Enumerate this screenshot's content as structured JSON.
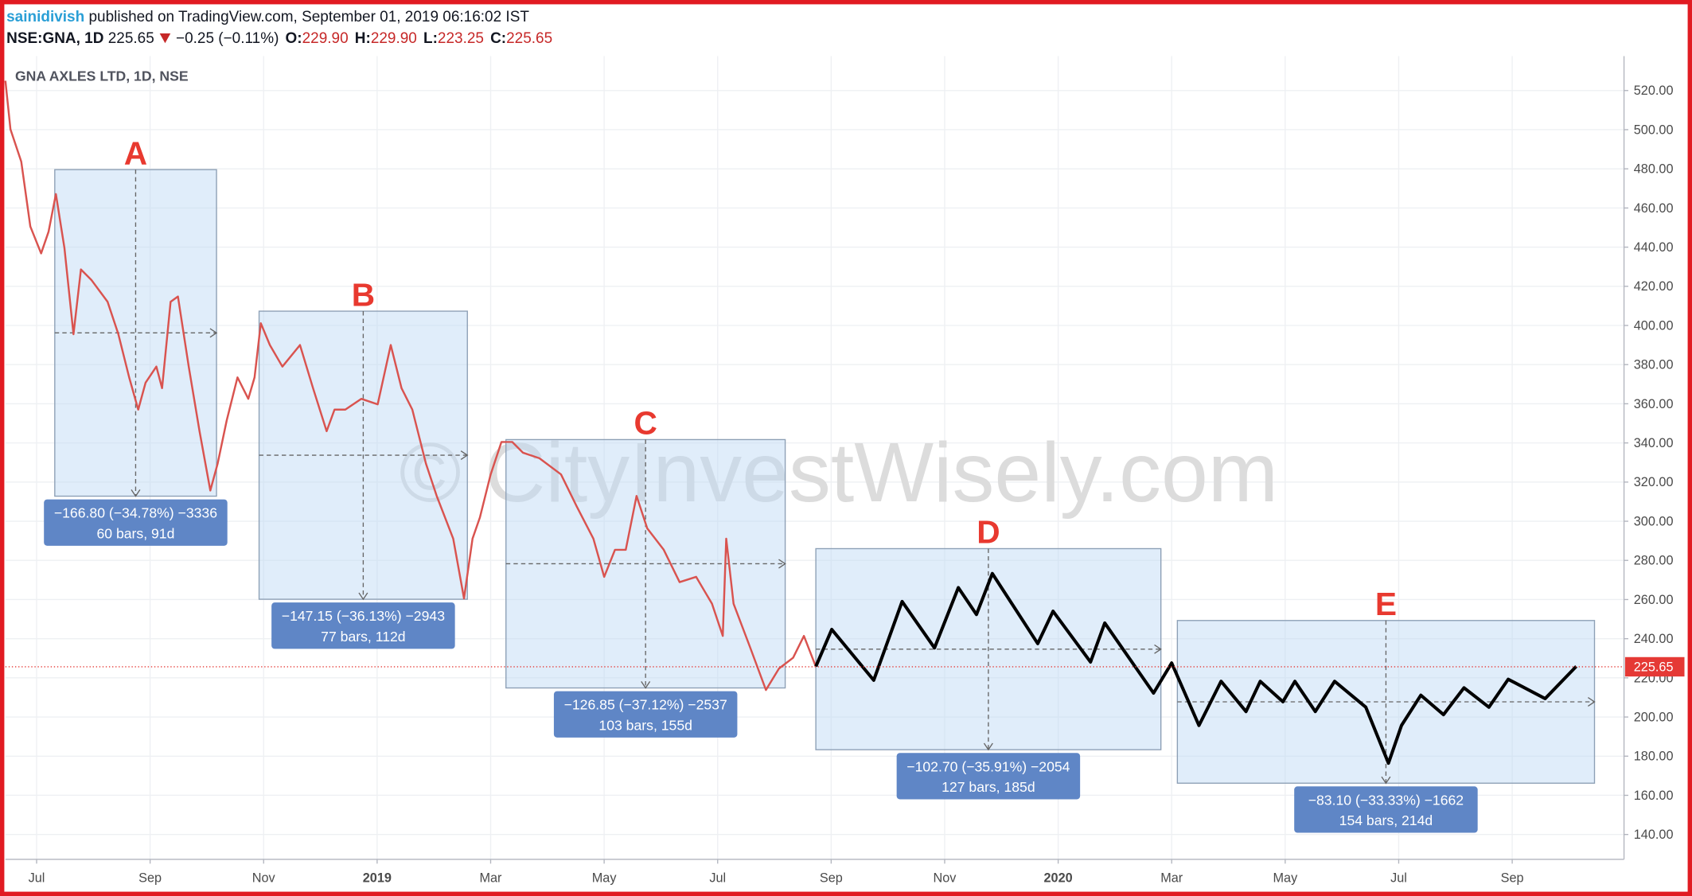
{
  "header": {
    "author": "sainidivish",
    "published": "published on TradingView.com, September 01, 2019 06:16:02 IST",
    "symbol": "NSE:GNA, 1D",
    "price": "225.65",
    "change": "−0.25 (−0.11%)",
    "ohlc": [
      {
        "label": "O:",
        "value": "229.90"
      },
      {
        "label": "H:",
        "value": "229.90"
      },
      {
        "label": "L:",
        "value": "223.25"
      },
      {
        "label": "C:",
        "value": "225.65"
      }
    ]
  },
  "chart_data": {
    "type": "line",
    "title": "GNA AXLES LTD, 1D, NSE",
    "watermark": "© CityInvestWisely.com",
    "xlim": [
      -0.55,
      27.97
    ],
    "xticks": [
      {
        "value": 0,
        "label": "Jul"
      },
      {
        "value": 2,
        "label": "Sep"
      },
      {
        "value": 4,
        "label": "Nov"
      },
      {
        "value": 6,
        "label": "2019"
      },
      {
        "value": 8,
        "label": "Mar"
      },
      {
        "value": 10,
        "label": "May"
      },
      {
        "value": 12,
        "label": "Jul"
      },
      {
        "value": 14,
        "label": "Sep"
      },
      {
        "value": 16,
        "label": "Nov"
      },
      {
        "value": 18,
        "label": "2020"
      },
      {
        "value": 20,
        "label": "Mar"
      },
      {
        "value": 22,
        "label": "May"
      },
      {
        "value": 24,
        "label": "Jul"
      },
      {
        "value": 26,
        "label": "Sep"
      }
    ],
    "ylim": [
      127.3,
      537.6
    ],
    "yticks": [
      {
        "value": 140,
        "label": "140.00"
      },
      {
        "value": 160,
        "label": "160.00"
      },
      {
        "value": 180,
        "label": "180.00"
      },
      {
        "value": 200,
        "label": "200.00"
      },
      {
        "value": 220,
        "label": "220.00"
      },
      {
        "value": 240,
        "label": "240.00"
      },
      {
        "value": 260,
        "label": "260.00"
      },
      {
        "value": 280,
        "label": "280.00"
      },
      {
        "value": 300,
        "label": "300.00"
      },
      {
        "value": 320,
        "label": "320.00"
      },
      {
        "value": 340,
        "label": "340.00"
      },
      {
        "value": 360,
        "label": "360.00"
      },
      {
        "value": 380,
        "label": "380.00"
      },
      {
        "value": 400,
        "label": "400.00"
      },
      {
        "value": 420,
        "label": "420.00"
      },
      {
        "value": 440,
        "label": "440.00"
      },
      {
        "value": 460,
        "label": "460.00"
      },
      {
        "value": 480,
        "label": "480.00"
      },
      {
        "value": 500,
        "label": "500.00"
      },
      {
        "value": 520,
        "label": "520.00"
      }
    ],
    "grid": true,
    "last_price": {
      "value": 225.65,
      "label": "225.65"
    },
    "series": [
      {
        "color": "#d9534f",
        "x": [
          -0.55,
          -0.46,
          -0.27,
          -0.11,
          0.08,
          0.21,
          0.34,
          0.49,
          0.65,
          0.78,
          0.97,
          1.25,
          1.44,
          1.63,
          1.79,
          1.92,
          2.11,
          2.21,
          2.36,
          2.49,
          2.68,
          2.87,
          3.06,
          3.19,
          3.35,
          3.54,
          3.73,
          3.84,
          3.95,
          4.11,
          4.33,
          4.64,
          4.87,
          5.11,
          5.25,
          5.44,
          5.72,
          6.01,
          6.24,
          6.43,
          6.62,
          6.86,
          7.05,
          7.34,
          7.53,
          7.68,
          7.81,
          8.0,
          8.19,
          8.38,
          8.57,
          8.86,
          9.24,
          9.52,
          9.81,
          10.0,
          10.19,
          10.38,
          10.57,
          10.76,
          11.05,
          11.33,
          11.62,
          11.9,
          12.09,
          12.15,
          12.28,
          12.57,
          12.85,
          13.08,
          13.33,
          13.52,
          13.73
        ],
        "values": [
          525.0,
          500.2,
          483.7,
          450.6,
          436.8,
          447.9,
          467.1,
          439.6,
          395.5,
          428.6,
          423.1,
          412.1,
          395.5,
          373.5,
          357.0,
          370.8,
          379.0,
          368.0,
          412.1,
          414.8,
          379.0,
          346.0,
          315.7,
          329.5,
          351.5,
          373.5,
          362.5,
          373.5,
          401.1,
          390.0,
          379.0,
          390.0,
          368.0,
          346.0,
          357.0,
          357.0,
          362.5,
          359.7,
          390.0,
          368.0,
          357.0,
          329.5,
          312.9,
          291.1,
          260.6,
          291.1,
          301.9,
          323.9,
          340.5,
          340.5,
          335.0,
          332.2,
          323.9,
          307.4,
          291.1,
          271.6,
          285.4,
          285.4,
          312.9,
          296.4,
          285.4,
          268.9,
          271.6,
          257.9,
          241.4,
          291.1,
          257.9,
          235.8,
          213.8,
          224.8,
          230.3,
          241.4,
          225.65
        ]
      },
      {
        "color": "#000000",
        "x": [
          13.73,
          14.01,
          14.75,
          15.25,
          15.82,
          16.24,
          16.56,
          16.84,
          17.64,
          17.91,
          18.57,
          18.82,
          19.68,
          20.0,
          20.48,
          20.87,
          21.31,
          21.56,
          21.96,
          22.17,
          22.53,
          22.87,
          23.42,
          23.82,
          24.05,
          24.39,
          24.79,
          25.15,
          25.59,
          25.93,
          26.58,
          27.13
        ],
        "values": [
          225.9,
          244.7,
          218.8,
          259.0,
          235.3,
          266.1,
          252.4,
          273.3,
          237.5,
          254.0,
          228.1,
          248.0,
          212.2,
          227.6,
          195.7,
          218.2,
          202.8,
          218.2,
          207.8,
          218.2,
          202.8,
          218.2,
          205.0,
          176.4,
          195.7,
          211.1,
          201.2,
          214.9,
          205.0,
          219.3,
          209.4,
          225.9
        ]
      }
    ],
    "boxes": [
      {
        "label": "A",
        "x0": 0.32,
        "x1": 3.17,
        "top": 479.6,
        "bottom": 312.8,
        "text": "−166.80 (−34.78%) −3336",
        "detail": "60 bars, 91d"
      },
      {
        "label": "B",
        "x0": 3.92,
        "x1": 7.59,
        "top": 407.3,
        "bottom": 260.15,
        "text": "−147.15 (−36.13%) −2943",
        "detail": "77 bars, 112d"
      },
      {
        "label": "C",
        "x0": 8.27,
        "x1": 13.19,
        "top": 341.7,
        "bottom": 214.85,
        "text": "−126.85 (−37.12%) −2537",
        "detail": "103 bars, 155d"
      },
      {
        "label": "D",
        "x0": 13.73,
        "x1": 19.81,
        "top": 286.0,
        "bottom": 183.3,
        "text": "−102.70 (−35.91%) −2054",
        "detail": "127 bars, 185d"
      },
      {
        "label": "E",
        "x0": 20.1,
        "x1": 27.45,
        "top": 249.3,
        "bottom": 166.2,
        "text": "−83.10 (−33.33%) −1662",
        "detail": "154 bars, 214d"
      }
    ]
  }
}
